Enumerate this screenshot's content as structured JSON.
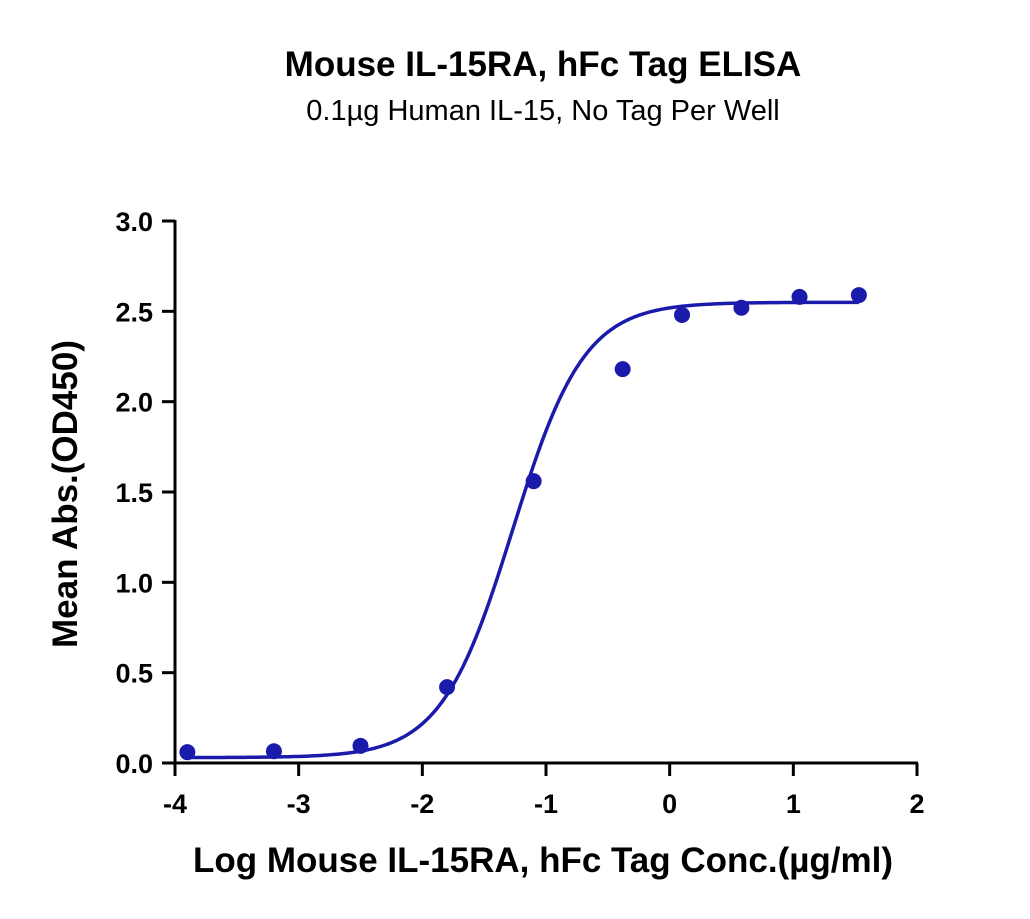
{
  "chart_data": {
    "type": "scatter",
    "title": "Mouse IL-15RA, hFc Tag ELISA",
    "subtitle": "0.1µg Human IL-15, No Tag Per Well",
    "xlabel": "Log Mouse IL-15RA, hFc Tag Conc.(µg/ml)",
    "ylabel": "Mean Abs.(OD450)",
    "xlim": [
      -4,
      2
    ],
    "ylim": [
      0,
      3
    ],
    "xticks": [
      "-4",
      "-3",
      "-2",
      "-1",
      "0",
      "1",
      "2"
    ],
    "yticks": [
      "0.0",
      "0.5",
      "1.0",
      "1.5",
      "2.0",
      "2.5",
      "3.0"
    ],
    "grid": false,
    "series": [
      {
        "color": "#1b1bab",
        "points": [
          {
            "x": -3.9,
            "y": 0.06
          },
          {
            "x": -3.2,
            "y": 0.065
          },
          {
            "x": -2.5,
            "y": 0.095
          },
          {
            "x": -1.8,
            "y": 0.42
          },
          {
            "x": -1.1,
            "y": 1.56
          },
          {
            "x": -0.38,
            "y": 2.18
          },
          {
            "x": 0.1,
            "y": 2.48
          },
          {
            "x": 0.58,
            "y": 2.52
          },
          {
            "x": 1.05,
            "y": 2.58
          },
          {
            "x": 1.53,
            "y": 2.59
          }
        ],
        "fit": {
          "model": "4PL",
          "bottom": 0.03,
          "top": 2.55,
          "logEC50": -1.27,
          "hillslope": 1.5
        }
      }
    ]
  }
}
